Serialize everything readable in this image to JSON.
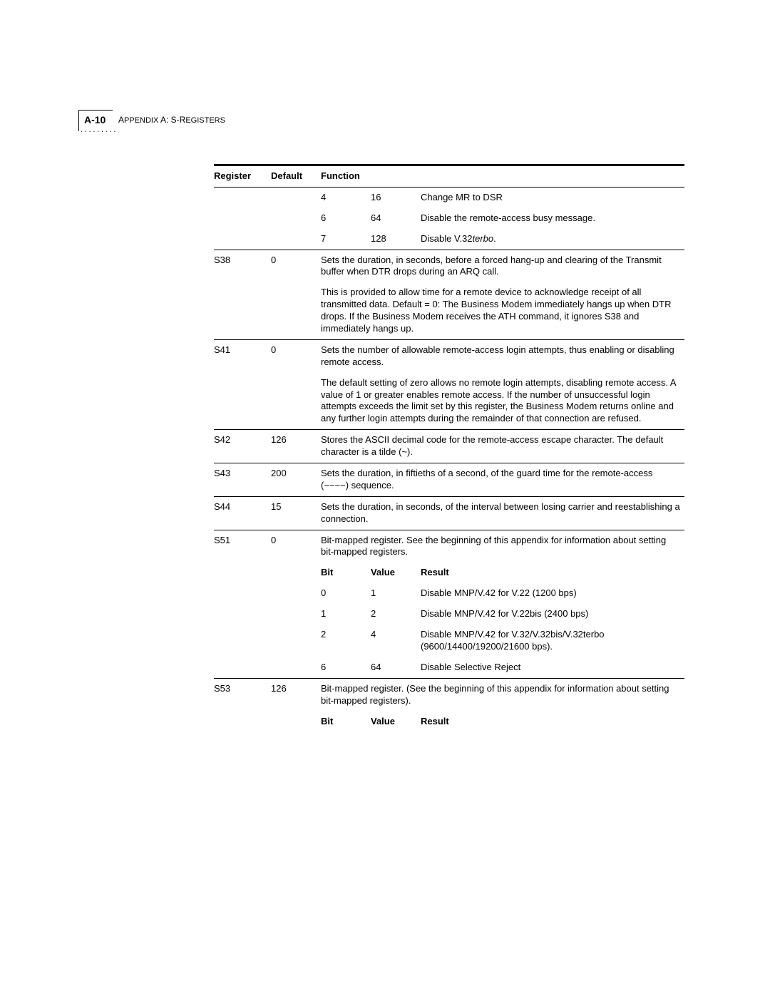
{
  "page": {
    "number": "A-10",
    "appendix_word": "A",
    "appendix_label": "PPENDIX",
    "appendix_letter_a": "A: S-R",
    "appendix_rest": "EGISTERS",
    "dots": "·········"
  },
  "headers": {
    "register": "Register",
    "default": "Default",
    "function": "Function",
    "bit": "Bit",
    "value": "Value",
    "result": "Result"
  },
  "prebits": [
    {
      "bit": "4",
      "val": "16",
      "res": "Change MR to DSR"
    },
    {
      "bit": "6",
      "val": "64",
      "res": "Disable the remote-access busy message."
    },
    {
      "bit": "7",
      "val": "128",
      "res_pre": "Disable V.32",
      "res_it": "terbo",
      "res_post": "."
    }
  ],
  "rows": {
    "s38": {
      "reg": "S38",
      "def": "0",
      "p1": "Sets the duration, in seconds, before a forced hang-up and clearing of the Transmit buffer when DTR drops during an ARQ call.",
      "p2": "This is provided to allow time for a remote device to acknowledge receipt of all transmitted data. Default = 0: The Business Modem immediately hangs up when DTR drops. If the Business Modem receives the ATH command, it ignores S38 and immediately hangs up."
    },
    "s41": {
      "reg": "S41",
      "def": "0",
      "p1": "Sets the number of allowable remote-access login attempts, thus enabling or disabling remote access.",
      "p2": "The default setting of zero allows no remote login attempts, disabling remote access. A value of 1 or greater enables remote access. If the number of unsuccessful login attempts exceeds the limit set by this register, the Business Modem returns online and any further login attempts during the remainder of that connection are refused."
    },
    "s42": {
      "reg": "S42",
      "def": "126",
      "p1": "Stores the ASCII decimal code for the remote-access escape character. The default character is a tilde (~)."
    },
    "s43": {
      "reg": "S43",
      "def": "200",
      "p1": "Sets the duration, in fiftieths of a second, of the guard time for the remote-access (~~~~) sequence."
    },
    "s44": {
      "reg": "S44",
      "def": "15",
      "p1": "Sets the duration, in seconds, of the interval between losing carrier and reestablishing a connection."
    },
    "s51": {
      "reg": "S51",
      "def": "0",
      "p1": "Bit-mapped register. See the beginning of this appendix for information about setting bit-mapped registers.",
      "bits": [
        {
          "bit": "0",
          "val": "1",
          "res": "Disable MNP/V.42 for V.22 (1200 bps)"
        },
        {
          "bit": "1",
          "val": "2",
          "res": "Disable MNP/V.42 for V.22bis (2400 bps)"
        },
        {
          "bit": "2",
          "val": "4",
          "res": "Disable MNP/V.42 for V.32/V.32bis/V.32terbo (9600/14400/19200/21600 bps)."
        },
        {
          "bit": "6",
          "val": "64",
          "res": "Disable Selective Reject"
        }
      ]
    },
    "s53": {
      "reg": "S53",
      "def": "126",
      "p1": "Bit-mapped register. (See the beginning of this appendix for information about setting bit-mapped registers)."
    }
  }
}
